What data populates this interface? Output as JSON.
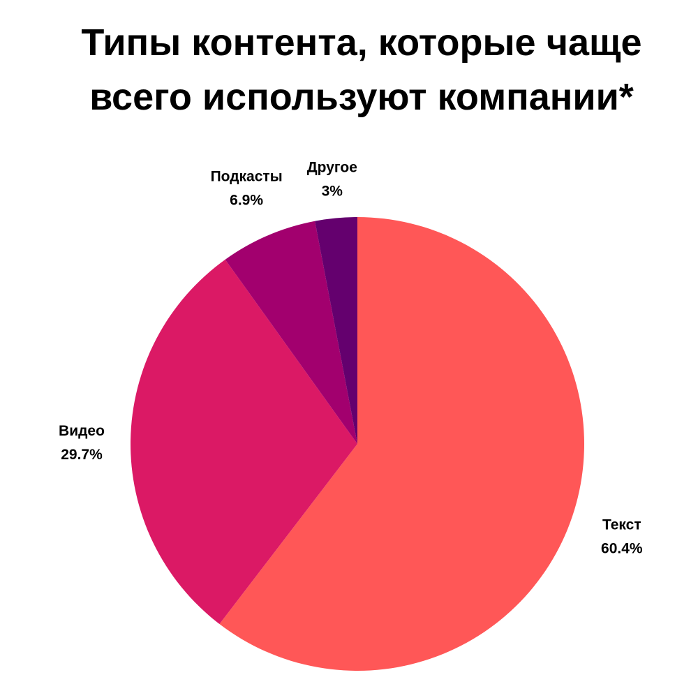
{
  "title_lines": [
    "Типы контента, которые чаще",
    "всего используют компании*"
  ],
  "chart_data": {
    "type": "pie",
    "title": "Типы контента, которые чаще всего используют компании*",
    "start": "top",
    "direction": "clockwise",
    "slices": [
      {
        "label": "Текст",
        "value": 60.4,
        "value_label": "60.4%",
        "color": "#FF5757"
      },
      {
        "label": "Видео",
        "value": 29.7,
        "value_label": "29.7%",
        "color": "#DB1965"
      },
      {
        "label": "Подкасты",
        "value": 6.9,
        "value_label": "6.9%",
        "color": "#A2006E"
      },
      {
        "label": "Другое",
        "value": 3,
        "value_label": "3%",
        "color": "#64006E"
      }
    ]
  }
}
